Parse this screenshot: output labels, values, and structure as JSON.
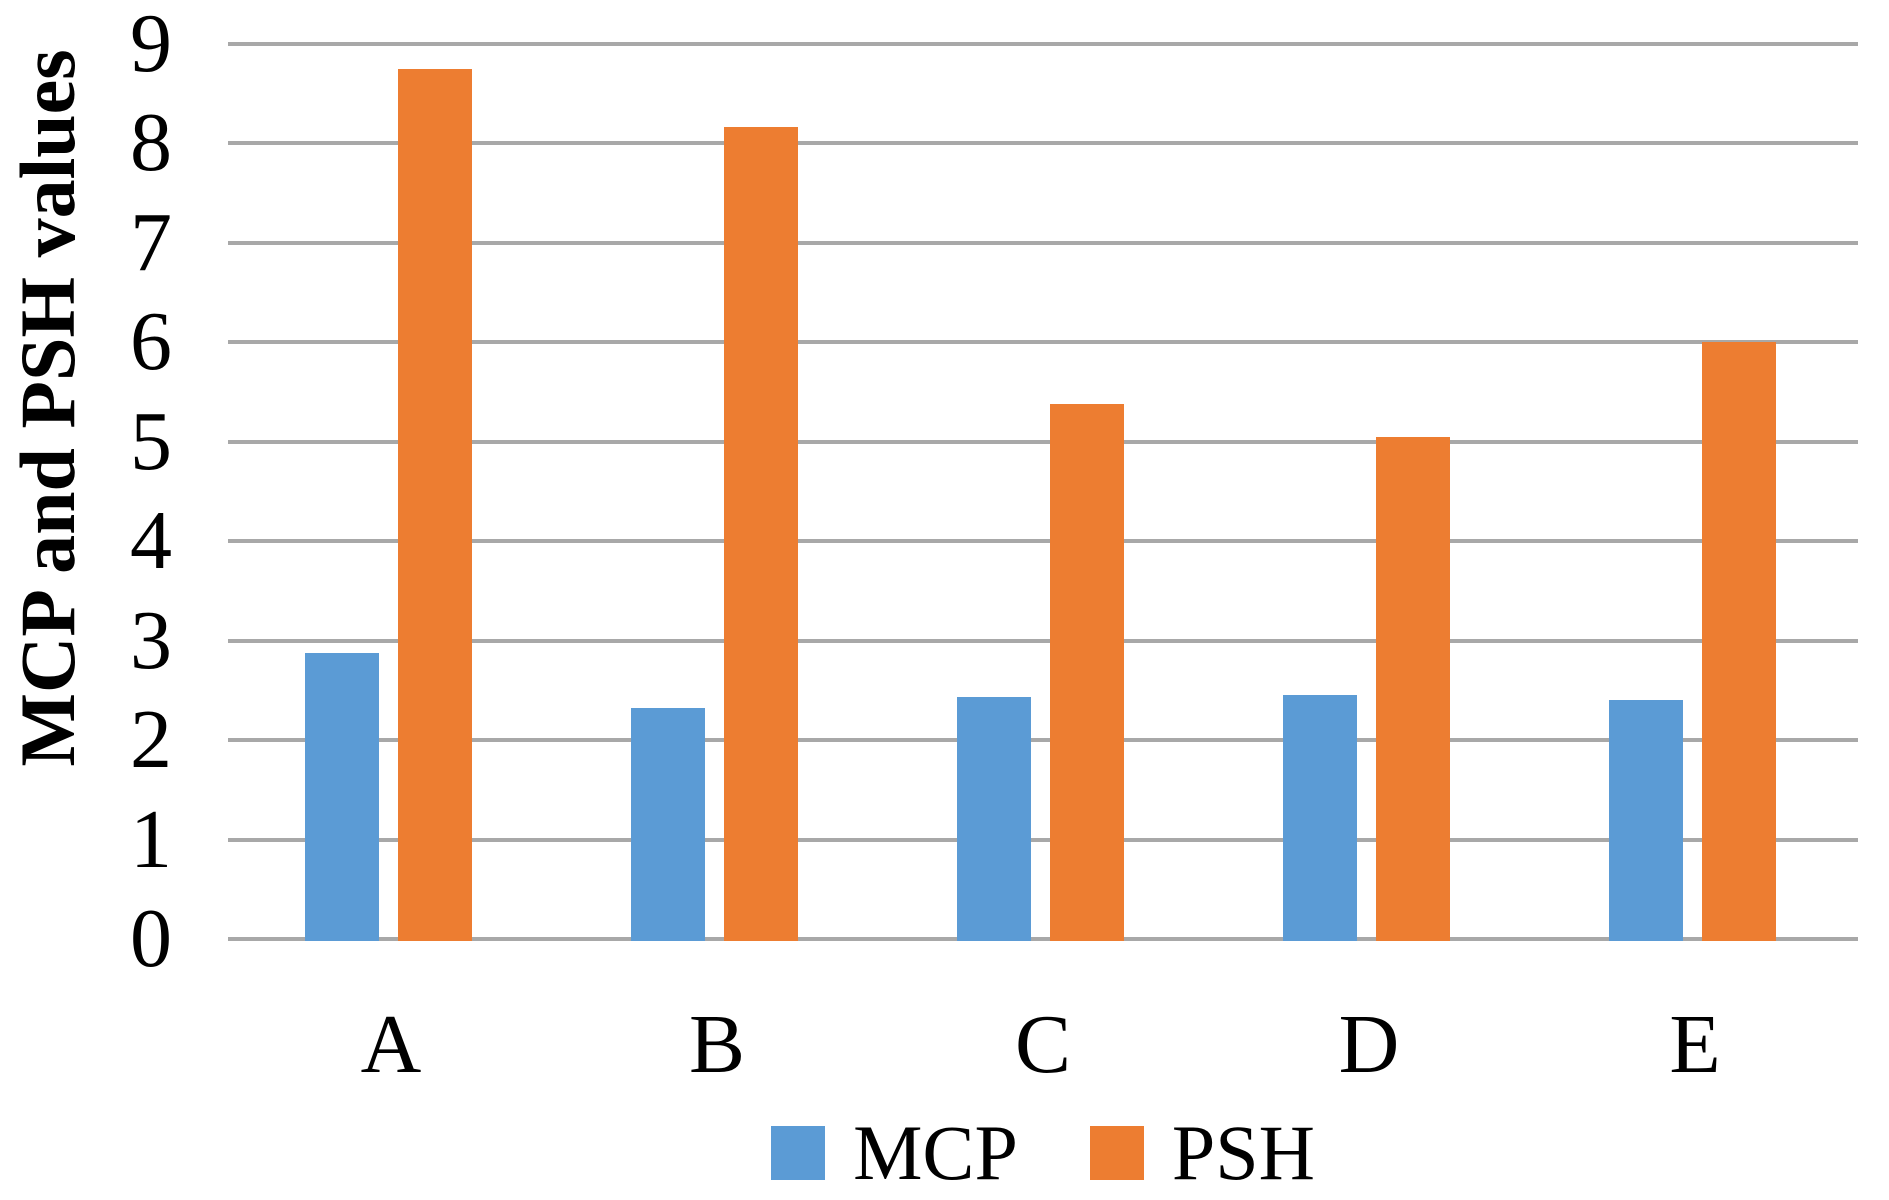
{
  "chart_data": {
    "type": "bar",
    "title": "",
    "xlabel": "",
    "ylabel": "MCP and PSH values",
    "categories": [
      "A",
      "B",
      "C",
      "D",
      "E"
    ],
    "series": [
      {
        "name": "MCP",
        "color": "#5B9BD5",
        "values": [
          2.88,
          2.32,
          2.43,
          2.45,
          2.4
        ]
      },
      {
        "name": "PSH",
        "color": "#ED7D31",
        "values": [
          8.75,
          8.17,
          5.38,
          5.05,
          6.0
        ]
      }
    ],
    "ylim": [
      0,
      9
    ],
    "yticks": [
      "0",
      "1",
      "2",
      "3",
      "4",
      "5",
      "6",
      "7",
      "8",
      "9"
    ],
    "grid": "horizontal",
    "gridline_color": "#A8A8A8",
    "axis_line_color": "#A8A8A8",
    "background": "#FFFFFF",
    "text_color": "#000000",
    "legend_position": "bottom",
    "legend_labels": [
      "MCP",
      "PSH"
    ]
  }
}
